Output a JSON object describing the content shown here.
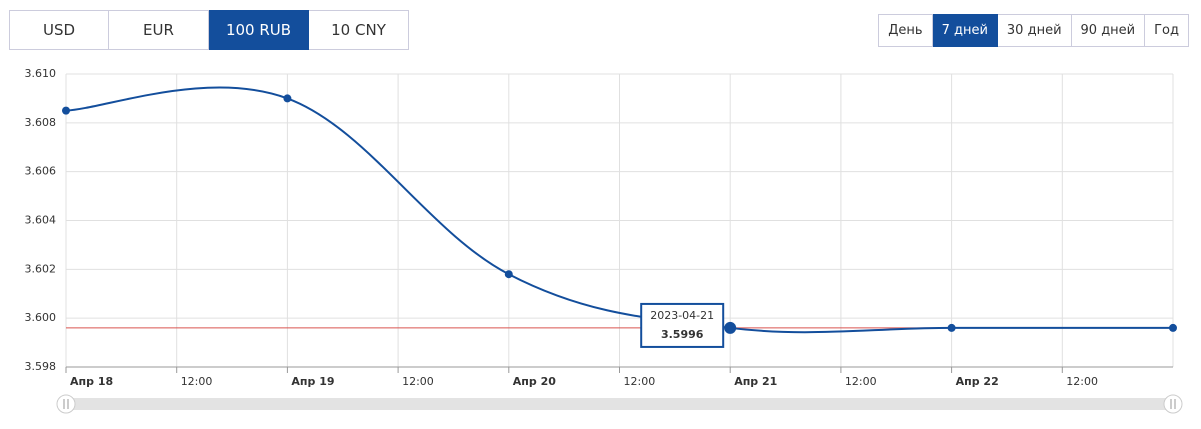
{
  "currencies": [
    "USD",
    "EUR",
    "100 RUB",
    "10 CNY"
  ],
  "active_currency": 2,
  "periods": [
    "День",
    "7 дней",
    "30 дней",
    "90 дней",
    "Год"
  ],
  "active_period": 1,
  "chart_data": {
    "type": "line",
    "series": [
      {
        "name": "100 RUB",
        "color": "#134e9c",
        "x": [
          0,
          24,
          48,
          72,
          96,
          120
        ],
        "values": [
          3.6085,
          3.609,
          3.6018,
          3.5996,
          3.5996,
          3.5996
        ]
      }
    ],
    "xlim": [
      0,
      120
    ],
    "xticks": [
      {
        "value": 0,
        "label": "Апр 18"
      },
      {
        "value": 12,
        "label": "12:00"
      },
      {
        "value": 24,
        "label": "Апр 19"
      },
      {
        "value": 36,
        "label": "12:00"
      },
      {
        "value": 48,
        "label": "Апр 20"
      },
      {
        "value": 60,
        "label": "12:00"
      },
      {
        "value": 72,
        "label": "Апр 21"
      },
      {
        "value": 84,
        "label": "12:00"
      },
      {
        "value": 96,
        "label": "Апр 22"
      },
      {
        "value": 108,
        "label": "12:00"
      }
    ],
    "ylim": [
      3.598,
      3.61
    ],
    "yticks": [
      3.598,
      {
        "value": 3.6,
        "label": "3.600"
      },
      3.602,
      3.604,
      3.606,
      3.608,
      {
        "value": 3.61,
        "label": "3.610"
      }
    ],
    "grid": true,
    "reference_line": {
      "value": 3.5996,
      "color": "#d9534f"
    },
    "tooltip": {
      "date": "2023-04-21",
      "index": 3
    }
  }
}
